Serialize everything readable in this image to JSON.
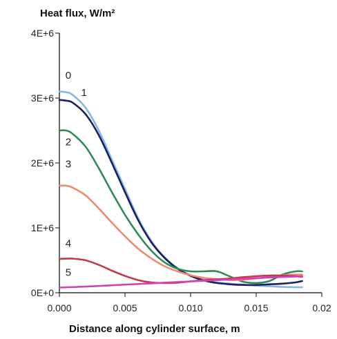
{
  "chart_data": {
    "type": "line",
    "ylabel": "Heat flux, W/m²",
    "xlabel": "Distance along cylinder surface, m",
    "xlim": [
      0,
      0.02
    ],
    "ylim": [
      0,
      4000000
    ],
    "x_ticks": [
      {
        "value": 0.0,
        "label": "0.000"
      },
      {
        "value": 0.005,
        "label": "0.005"
      },
      {
        "value": 0.01,
        "label": "0.010"
      },
      {
        "value": 0.015,
        "label": "0.015"
      },
      {
        "value": 0.02,
        "label": "0.02"
      }
    ],
    "y_ticks": [
      {
        "value": 0,
        "label": "0E+0"
      },
      {
        "value": 1000000,
        "label": "1E+6"
      },
      {
        "value": 2000000,
        "label": "2E+6"
      },
      {
        "value": 3000000,
        "label": "3E+6"
      },
      {
        "value": 4000000,
        "label": "4E+6"
      }
    ],
    "grid": false,
    "series": [
      {
        "name": "0",
        "color": "#7fb8e8",
        "points": [
          [
            0,
            3100000
          ],
          [
            0.0005,
            3090000
          ],
          [
            0.001,
            3050000
          ],
          [
            0.002,
            2850000
          ],
          [
            0.003,
            2500000
          ],
          [
            0.004,
            2050000
          ],
          [
            0.005,
            1600000
          ],
          [
            0.006,
            1150000
          ],
          [
            0.007,
            800000
          ],
          [
            0.008,
            550000
          ],
          [
            0.009,
            380000
          ],
          [
            0.01,
            270000
          ],
          [
            0.011,
            200000
          ],
          [
            0.012,
            160000
          ],
          [
            0.013,
            140000
          ],
          [
            0.014,
            125000
          ],
          [
            0.015,
            110000
          ],
          [
            0.016,
            100000
          ],
          [
            0.017,
            90000
          ],
          [
            0.018,
            85000
          ],
          [
            0.0185,
            85000
          ]
        ]
      },
      {
        "name": "1",
        "color": "#1c1f5e",
        "points": [
          [
            0,
            2970000
          ],
          [
            0.0005,
            2960000
          ],
          [
            0.001,
            2930000
          ],
          [
            0.002,
            2750000
          ],
          [
            0.003,
            2430000
          ],
          [
            0.004,
            2000000
          ],
          [
            0.005,
            1550000
          ],
          [
            0.006,
            1120000
          ],
          [
            0.007,
            780000
          ],
          [
            0.008,
            540000
          ],
          [
            0.009,
            370000
          ],
          [
            0.01,
            260000
          ],
          [
            0.011,
            190000
          ],
          [
            0.012,
            150000
          ],
          [
            0.013,
            130000
          ],
          [
            0.014,
            120000
          ],
          [
            0.015,
            120000
          ],
          [
            0.016,
            130000
          ],
          [
            0.017,
            140000
          ],
          [
            0.018,
            160000
          ],
          [
            0.0185,
            180000
          ]
        ]
      },
      {
        "name": "2",
        "color": "#2e8a55",
        "points": [
          [
            0,
            2500000
          ],
          [
            0.0005,
            2500000
          ],
          [
            0.001,
            2450000
          ],
          [
            0.002,
            2250000
          ],
          [
            0.003,
            1920000
          ],
          [
            0.004,
            1550000
          ],
          [
            0.005,
            1200000
          ],
          [
            0.006,
            900000
          ],
          [
            0.007,
            650000
          ],
          [
            0.008,
            470000
          ],
          [
            0.009,
            370000
          ],
          [
            0.01,
            330000
          ],
          [
            0.011,
            330000
          ],
          [
            0.012,
            330000
          ],
          [
            0.013,
            250000
          ],
          [
            0.014,
            170000
          ],
          [
            0.015,
            150000
          ],
          [
            0.016,
            180000
          ],
          [
            0.017,
            280000
          ],
          [
            0.018,
            330000
          ],
          [
            0.0185,
            330000
          ]
        ]
      },
      {
        "name": "3",
        "color": "#f08a6a",
        "points": [
          [
            0,
            1650000
          ],
          [
            0.0005,
            1650000
          ],
          [
            0.001,
            1620000
          ],
          [
            0.002,
            1500000
          ],
          [
            0.003,
            1300000
          ],
          [
            0.004,
            1080000
          ],
          [
            0.005,
            870000
          ],
          [
            0.006,
            680000
          ],
          [
            0.007,
            530000
          ],
          [
            0.008,
            410000
          ],
          [
            0.009,
            330000
          ],
          [
            0.01,
            270000
          ],
          [
            0.011,
            230000
          ],
          [
            0.012,
            210000
          ],
          [
            0.013,
            195000
          ],
          [
            0.014,
            200000
          ],
          [
            0.015,
            220000
          ],
          [
            0.016,
            245000
          ],
          [
            0.017,
            270000
          ],
          [
            0.018,
            280000
          ],
          [
            0.0185,
            280000
          ]
        ]
      },
      {
        "name": "4",
        "color": "#c23a4a",
        "points": [
          [
            0,
            520000
          ],
          [
            0.0005,
            525000
          ],
          [
            0.001,
            525000
          ],
          [
            0.002,
            500000
          ],
          [
            0.003,
            430000
          ],
          [
            0.004,
            340000
          ],
          [
            0.005,
            260000
          ],
          [
            0.006,
            195000
          ],
          [
            0.007,
            160000
          ],
          [
            0.008,
            150000
          ],
          [
            0.009,
            155000
          ],
          [
            0.01,
            175000
          ],
          [
            0.011,
            195000
          ],
          [
            0.012,
            205000
          ],
          [
            0.013,
            220000
          ],
          [
            0.014,
            240000
          ],
          [
            0.015,
            255000
          ],
          [
            0.016,
            265000
          ],
          [
            0.017,
            265000
          ],
          [
            0.018,
            255000
          ],
          [
            0.0185,
            245000
          ]
        ]
      },
      {
        "name": "5",
        "color": "#d040b8",
        "points": [
          [
            0,
            80000
          ],
          [
            0.002,
            95000
          ],
          [
            0.004,
            115000
          ],
          [
            0.006,
            135000
          ],
          [
            0.008,
            155000
          ],
          [
            0.01,
            175000
          ],
          [
            0.012,
            195000
          ],
          [
            0.014,
            215000
          ],
          [
            0.016,
            235000
          ],
          [
            0.018,
            250000
          ],
          [
            0.0185,
            255000
          ]
        ]
      }
    ],
    "curve_labels": [
      {
        "text": "0",
        "x": 0.0003,
        "y": 3300000
      },
      {
        "text": "1",
        "x": 0.0015,
        "y": 3030000
      },
      {
        "text": "2",
        "x": 0.0003,
        "y": 2270000
      },
      {
        "text": "3",
        "x": 0.0003,
        "y": 1930000
      },
      {
        "text": "4",
        "x": 0.0003,
        "y": 710000
      },
      {
        "text": "5",
        "x": 0.0003,
        "y": 260000
      }
    ]
  }
}
